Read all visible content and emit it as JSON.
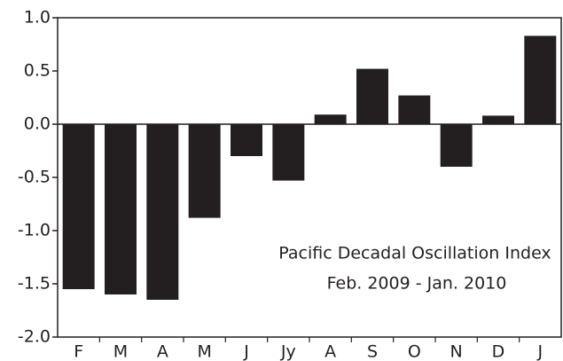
{
  "chart_data": {
    "type": "bar",
    "annotations": [
      "Pacific Decadal Oscillation Index",
      "Feb. 2009 - Jan. 2010"
    ],
    "categories": [
      "F",
      "M",
      "A",
      "M",
      "J",
      "Jy",
      "A",
      "S",
      "O",
      "N",
      "D",
      "J"
    ],
    "values": [
      -1.55,
      -1.6,
      -1.65,
      -0.88,
      -0.3,
      -0.53,
      0.09,
      0.52,
      0.27,
      -0.4,
      0.08,
      0.83
    ],
    "color": "#231f20",
    "ylim": [
      -2.0,
      1.0
    ],
    "yticks": [
      {
        "value": 1.0,
        "label": "1.0"
      },
      0.5,
      {
        "value": 0.0,
        "label": "0.0"
      },
      -0.5,
      {
        "value": -1.0,
        "label": "-1.0"
      },
      -1.5,
      {
        "value": -2.0,
        "label": "-2.0"
      }
    ],
    "grid": false
  }
}
